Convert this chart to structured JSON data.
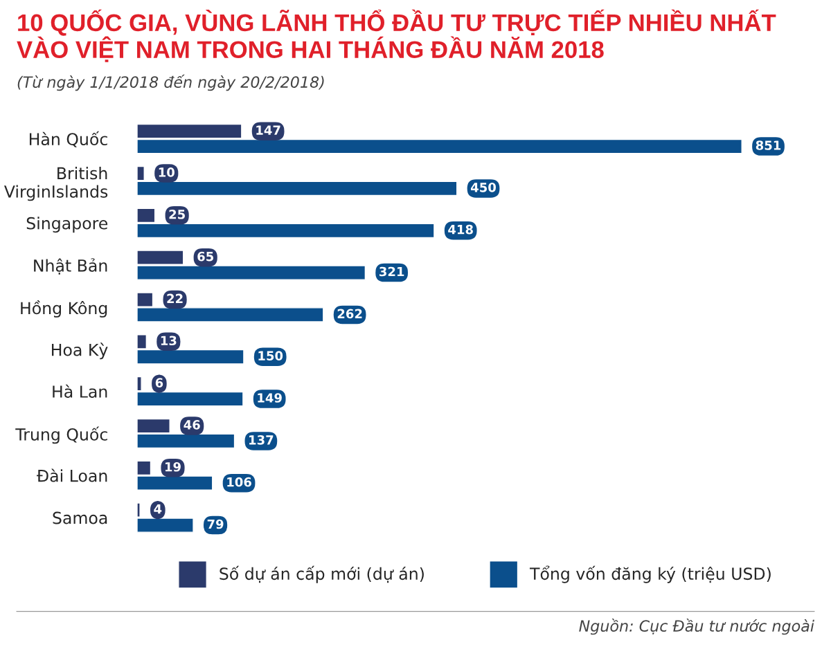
{
  "chart_data": {
    "type": "bar",
    "orientation": "horizontal",
    "title": "10 QUỐC GIA, VÙNG LÃNH THỔ ĐẦU TƯ TRỰC TIẾP NHIỀU NHẤT\nVÀO VIỆT NAM TRONG HAI THÁNG ĐẦU NĂM 2018",
    "subtitle": "(Từ ngày 1/1/2018 đến ngày 20/2/2018)",
    "categories": [
      "Hàn Quốc",
      "British\nVirginIslands",
      "Singapore",
      "Nhật Bản",
      "Hồng Kông",
      "Hoa Kỳ",
      "Hà Lan",
      "Trung Quốc",
      "Đài Loan",
      "Samoa"
    ],
    "series": [
      {
        "name": "Số dự án cấp mới (dự án)",
        "color": "#2b3a6b",
        "values": [
          147,
          10,
          25,
          65,
          22,
          13,
          6,
          46,
          19,
          4
        ]
      },
      {
        "name": "Tổng vốn đăng ký (triệu USD)",
        "color": "#0b4f8c",
        "values": [
          851,
          450,
          418,
          321,
          262,
          150,
          149,
          137,
          106,
          79
        ]
      }
    ],
    "data_labels": true,
    "legend": "bottom",
    "grid": false,
    "annotations": [
      "Nguồn: Cục Đầu tư nước ngoài"
    ]
  }
}
